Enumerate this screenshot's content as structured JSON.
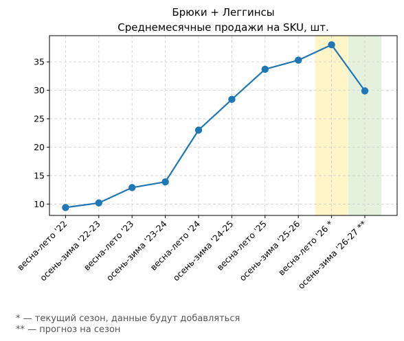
{
  "chart_data": {
    "type": "line",
    "title": "Брюки + Леггинсы",
    "subtitle": "Среднемесячные продажи на SKU, шт.",
    "xlabel": "",
    "ylabel": "",
    "categories": [
      "весна-лето '22",
      "осень-зима '22-23",
      "весна-лето '23",
      "осень-зима '23-24",
      "весна-лето '24",
      "осень-зима '24-25",
      "весна-лето '25",
      "осень-зима '25-26",
      "весна-лето '26 *",
      "осень-зима '26-27 **"
    ],
    "series": [
      {
        "values": [
          9.4,
          10.2,
          12.9,
          13.9,
          23.0,
          28.4,
          33.7,
          35.3,
          38.0,
          29.9
        ]
      }
    ],
    "ylim": [
      8.0,
      39.6
    ],
    "yticks": [
      10,
      15,
      20,
      25,
      30,
      35
    ],
    "grid": true,
    "line_color": "#1f77b4",
    "highlights": [
      {
        "category_index": 8,
        "color": "#fff5c8"
      },
      {
        "category_index": 9,
        "color": "#e3f1dd"
      }
    ]
  },
  "footnotes": {
    "line1": "* — текущий сезон, данные будут добавляться",
    "line2": "** — прогноз на сезон"
  }
}
